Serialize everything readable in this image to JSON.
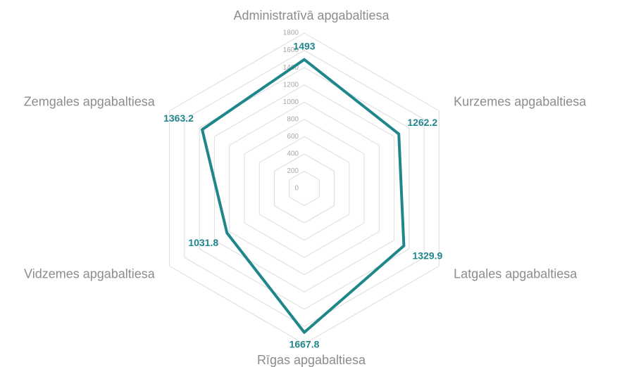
{
  "chart_data": {
    "type": "radar",
    "categories": [
      "Administratīvā apgabaltiesa",
      "Kurzemes apgabaltiesa",
      "Latgales apgabaltiesa",
      "Rīgas apgabaltiesa",
      "Vidzemes apgabaltiesa",
      "Zemgales apgabaltiesa"
    ],
    "values": [
      1493,
      1262.2,
      1329.9,
      1667.8,
      1031.8,
      1363.2
    ],
    "color": "#1f878c",
    "ylim": [
      0,
      1800
    ],
    "yticks": [
      0,
      200,
      400,
      600,
      800,
      1000,
      1200,
      1400,
      1600,
      1800
    ],
    "grid": true
  }
}
